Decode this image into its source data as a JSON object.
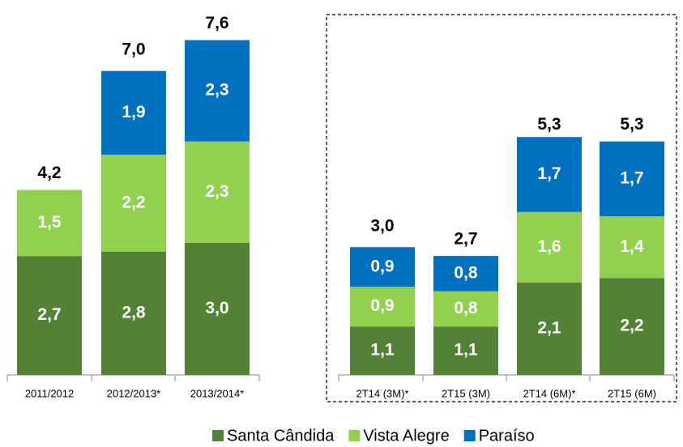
{
  "chart_data": {
    "type": "stacked_bar",
    "categories": [
      "2011/2012",
      "2012/2013*",
      "2013/2014*",
      "2T14 (3M)*",
      "2T15 (3M)",
      "2T14 (6M)*",
      "2T15 (6M)"
    ],
    "series": [
      {
        "name": "Santa Cândida",
        "color": "#538135",
        "values": [
          2.7,
          2.8,
          3.0,
          1.1,
          1.1,
          2.1,
          2.2
        ],
        "value_labels": [
          "2,7",
          "2,8",
          "3,0",
          "1,1",
          "1,1",
          "2,1",
          "2,2"
        ]
      },
      {
        "name": "Vista Alegre",
        "color": "#92d050",
        "values": [
          1.5,
          2.2,
          2.3,
          0.9,
          0.8,
          1.6,
          1.4
        ],
        "value_labels": [
          "1,5",
          "2,2",
          "2,3",
          "0,9",
          "0,8",
          "1,6",
          "1,4"
        ]
      },
      {
        "name": "Paraíso",
        "color": "#0070c0",
        "values": [
          null,
          1.9,
          2.3,
          0.9,
          0.8,
          1.7,
          1.7
        ],
        "value_labels": [
          null,
          "1,9",
          "2,3",
          "0,9",
          "0,8",
          "1,7",
          "1,7"
        ]
      }
    ],
    "totals": [
      4.2,
      7.0,
      7.6,
      3.0,
      2.7,
      5.3,
      5.3
    ],
    "total_labels": [
      "4,2",
      "7,0",
      "7,6",
      "3,0",
      "2,7",
      "5,3",
      "5,3"
    ],
    "legend": "bottom"
  }
}
